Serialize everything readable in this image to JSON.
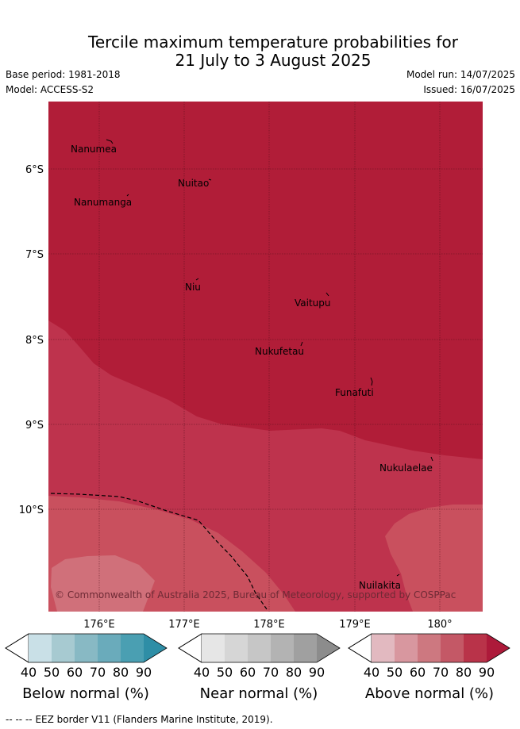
{
  "header": {
    "title_line1": "Tercile maximum temperature probabilities for",
    "title_line2": "21 July to 3 August 2025",
    "base_period": "Base period: 1981-2018",
    "model": "Model: ACCESS-S2",
    "model_run": "Model run: 14/07/2025",
    "issued": "Issued: 16/07/2025"
  },
  "map": {
    "lat_labels": [
      "6°S",
      "7°S",
      "8°S",
      "9°S",
      "10°S"
    ],
    "lon_labels": [
      "176°E",
      "177°E",
      "178°E",
      "179°E",
      "180°"
    ],
    "places": [
      "Nanumea",
      "Nuitao",
      "Nanumanga",
      "Niu",
      "Vaitupu",
      "Nukufetau",
      "Funafuti",
      "Nukulaelae",
      "Nuilakita"
    ],
    "copyright": "© Commonwealth of Australia 2025, Bureau of Meteorology, supported by COSPPac",
    "colors": {
      "above_90": "#b11d38",
      "above_80": "#be334d",
      "above_70": "#c9505e",
      "above_60": "#d0707a"
    }
  },
  "legend": {
    "ticks": [
      "40",
      "50",
      "60",
      "70",
      "80",
      "90"
    ],
    "below": {
      "title": "Below normal (%)",
      "colors": [
        "#c9e0e7",
        "#a7cad1",
        "#88b9c4",
        "#6aabbb",
        "#4a9fb2",
        "#2e8ea6"
      ]
    },
    "near": {
      "title": "Near normal (%)",
      "colors": [
        "#e6e6e6",
        "#d6d6d6",
        "#c6c6c6",
        "#b3b3b3",
        "#a0a0a0",
        "#8c8c8c"
      ]
    },
    "above": {
      "title": "Above normal (%)",
      "colors": [
        "#e2b9c0",
        "#d8979f",
        "#cd7880",
        "#c45866",
        "#b93349",
        "#ad1a3a"
      ]
    }
  },
  "footer": {
    "eez_marker": "-- -- --",
    "eez_text": "EEZ border V11 (Flanders Marine Institute, 2019)."
  }
}
